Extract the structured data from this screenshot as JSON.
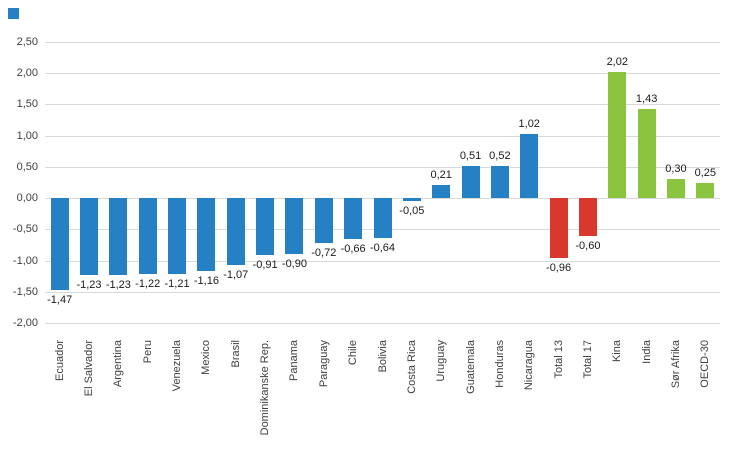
{
  "figure": {
    "background": "#ffffff",
    "marker_color": "#2581c4",
    "gridline_color": "#d9d9d9",
    "text_color": "#404040"
  },
  "chart_data": {
    "type": "bar",
    "title": "",
    "xlabel": "",
    "ylabel": "",
    "grid": true,
    "legend": "none",
    "ylim": [
      -2.0,
      2.5
    ],
    "ytick_step": 0.5,
    "ytick_labels": [
      "2,50",
      "2,00",
      "1,50",
      "1,00",
      "0,50",
      "0,00",
      "-0,50",
      "-1,00",
      "-1,50",
      "-2,00"
    ],
    "categories": [
      "Ecuador",
      "El Salvador",
      "Argentina",
      "Peru",
      "Venezuela",
      "Mexico",
      "Brasil",
      "Dominikanske Rep.",
      "Panama",
      "Paraguay",
      "Chile",
      "Bolivia",
      "Costa Rica",
      "Uruguay",
      "Guatemala",
      "Honduras",
      "Nicaragua",
      "Total 13",
      "Total 17",
      "Kina",
      "India",
      "Sør Afrika",
      "OECD-30"
    ],
    "values": [
      -1.47,
      -1.23,
      -1.23,
      -1.22,
      -1.21,
      -1.16,
      -1.07,
      -0.91,
      -0.9,
      -0.72,
      -0.66,
      -0.64,
      -0.05,
      0.21,
      0.51,
      0.52,
      1.02,
      -0.96,
      -0.6,
      2.02,
      1.43,
      0.3,
      0.25
    ],
    "value_labels": [
      "-1,47",
      "-1,23",
      "-1,23",
      "-1,22",
      "-1,21",
      "-1,16",
      "-1,07",
      "-0,91",
      "-0,90",
      "-0,72",
      "-0,66",
      "-0,64",
      "-0,05",
      "0,21",
      "0,51",
      "0,52",
      "1,02",
      "-0,96",
      "-0,60",
      "2,02",
      "1,43",
      "0,30",
      "0,25"
    ],
    "bar_colors": [
      "blue",
      "blue",
      "blue",
      "blue",
      "blue",
      "blue",
      "blue",
      "blue",
      "blue",
      "blue",
      "blue",
      "blue",
      "blue",
      "blue",
      "blue",
      "blue",
      "blue",
      "red",
      "red",
      "green",
      "green",
      "green",
      "green"
    ],
    "colors": {
      "blue": "#2581c4",
      "red": "#d8392c",
      "green": "#8bc53f"
    }
  }
}
